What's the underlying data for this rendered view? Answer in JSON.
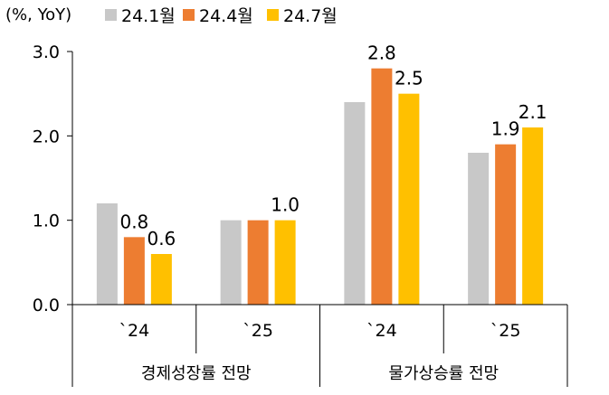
{
  "chart_data": {
    "type": "bar",
    "unit_label": "(%, YoY)",
    "ylim": [
      0,
      3
    ],
    "yticks": [
      "0.0",
      "1.0",
      "2.0",
      "3.0"
    ],
    "ytick_values": [
      0,
      1,
      2,
      3
    ],
    "legend_position": "top",
    "grid": false,
    "groups": [
      {
        "label": "경제성장률 전망",
        "categories": [
          "`24",
          "`25"
        ]
      },
      {
        "label": "물가상승률 전망",
        "categories": [
          "`24",
          "`25"
        ]
      }
    ],
    "categories": [
      "`24",
      "`25",
      "`24",
      "`25"
    ],
    "series": [
      {
        "name": "24.1월",
        "color": "#c8c8c8",
        "values": [
          1.2,
          1.0,
          2.4,
          1.8
        ],
        "labels": [
          "",
          "",
          "",
          ""
        ]
      },
      {
        "name": "24.4월",
        "color": "#ed7d31",
        "values": [
          0.8,
          1.0,
          2.8,
          1.9
        ],
        "labels": [
          "0.8",
          "",
          "2.8",
          "1.9"
        ]
      },
      {
        "name": "24.7월",
        "color": "#ffc000",
        "values": [
          0.6,
          1.0,
          2.5,
          2.1
        ],
        "labels": [
          "0.6",
          "1.0",
          "2.5",
          "2.1"
        ]
      }
    ]
  }
}
